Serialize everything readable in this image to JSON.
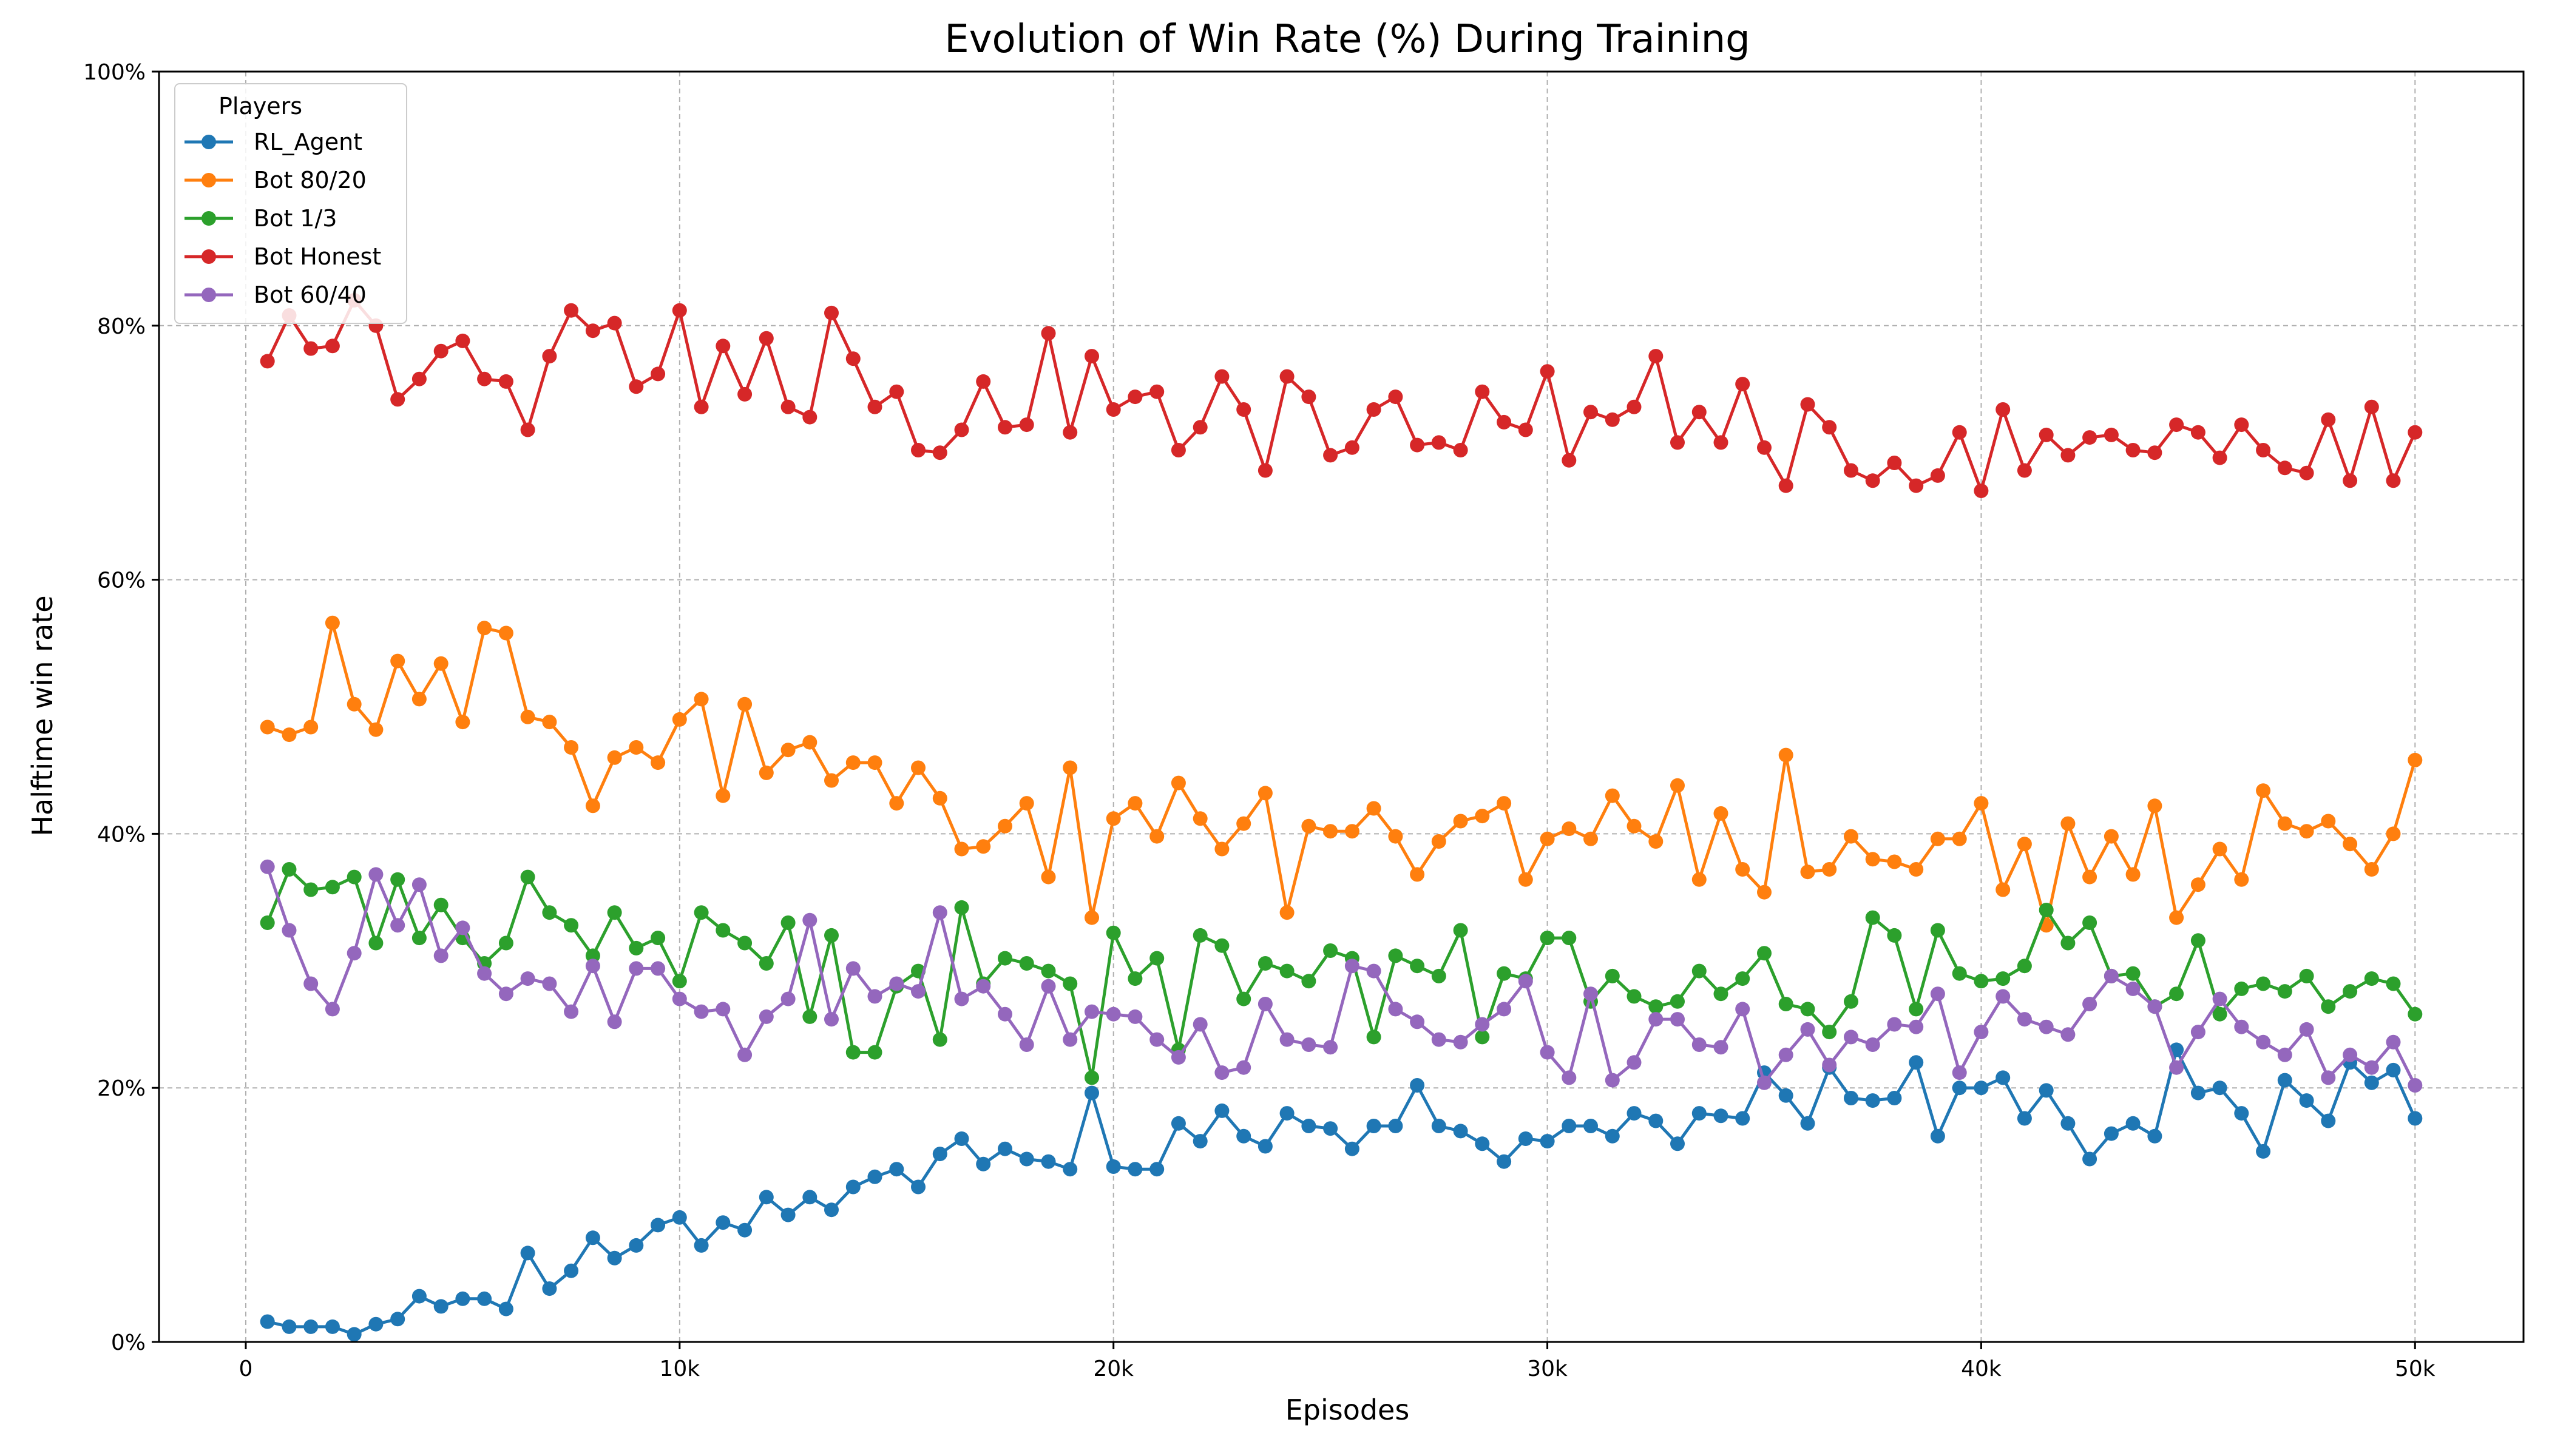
{
  "chart_data": {
    "type": "line",
    "title": "Evolution of Win Rate (%) During Training",
    "xlabel": "Episodes",
    "ylabel": "Halftime win rate",
    "xlim": [
      -2000,
      52500
    ],
    "ylim": [
      0,
      100
    ],
    "x_ticks": [
      {
        "value": 0,
        "label": "0"
      },
      {
        "value": 10000,
        "label": "10k"
      },
      {
        "value": 20000,
        "label": "20k"
      },
      {
        "value": 30000,
        "label": "30k"
      },
      {
        "value": 40000,
        "label": "40k"
      },
      {
        "value": 50000,
        "label": "50k"
      }
    ],
    "y_ticks": [
      {
        "value": 0,
        "label": "0%"
      },
      {
        "value": 20,
        "label": "20%"
      },
      {
        "value": 40,
        "label": "40%"
      },
      {
        "value": 60,
        "label": "60%"
      },
      {
        "value": 80,
        "label": "80%"
      },
      {
        "value": 100,
        "label": "100%"
      }
    ],
    "grid": true,
    "legend": {
      "title": "Players",
      "position": "top-left"
    },
    "x": {
      "start": 500,
      "step": 500,
      "count": 100
    },
    "series": [
      {
        "name": "RL_Agent",
        "color": "#1f77b4",
        "values": [
          1.6,
          1.2,
          1.2,
          1.2,
          0.6,
          1.4,
          1.8,
          3.6,
          2.8,
          3.4,
          3.4,
          2.6,
          7.0,
          4.2,
          5.6,
          8.2,
          6.6,
          7.6,
          9.2,
          9.8,
          7.6,
          9.4,
          8.8,
          11.4,
          10.0,
          11.4,
          10.4,
          12.2,
          13.0,
          13.6,
          12.2,
          14.8,
          16.0,
          14.0,
          15.2,
          14.4,
          14.2,
          13.6,
          19.6,
          13.8,
          13.6,
          13.6,
          17.2,
          15.8,
          18.2,
          16.2,
          15.4,
          18.0,
          17.0,
          16.8,
          15.2,
          17.0,
          17.0,
          20.2,
          17.0,
          16.6,
          15.6,
          14.2,
          16.0,
          15.8,
          17.0,
          17.0,
          16.2,
          18.0,
          17.4,
          15.6,
          18.0,
          17.8,
          17.6,
          21.2,
          19.4,
          17.2,
          21.6,
          19.2,
          19.0,
          19.2,
          22.0,
          16.2,
          20.0,
          20.0,
          20.8,
          17.6,
          19.8,
          17.2,
          14.4,
          16.4,
          17.2,
          16.2,
          23.0,
          19.6,
          20.0,
          18.0,
          15.0,
          20.6,
          19.0,
          17.4,
          22.0,
          20.4,
          21.4,
          17.6
        ]
      },
      {
        "name": "Bot 80/20",
        "color": "#ff7f0e",
        "values": [
          48.4,
          47.8,
          48.4,
          56.6,
          50.2,
          48.2,
          53.6,
          50.6,
          53.4,
          48.8,
          56.2,
          55.8,
          49.2,
          48.8,
          46.8,
          42.2,
          46.0,
          46.8,
          45.6,
          49.0,
          50.6,
          43.0,
          50.2,
          44.8,
          46.6,
          47.2,
          44.2,
          45.6,
          45.6,
          42.4,
          45.2,
          42.8,
          38.8,
          39.0,
          40.6,
          42.4,
          36.6,
          45.2,
          33.4,
          41.2,
          42.4,
          39.8,
          44.0,
          41.2,
          38.8,
          40.8,
          43.2,
          33.8,
          40.6,
          40.2,
          40.2,
          42.0,
          39.8,
          36.8,
          39.4,
          41.0,
          41.4,
          42.4,
          36.4,
          39.6,
          40.4,
          39.6,
          43.0,
          40.6,
          39.4,
          43.8,
          36.4,
          41.6,
          37.2,
          35.4,
          46.2,
          37.0,
          37.2,
          39.8,
          38.0,
          37.8,
          37.2,
          39.6,
          39.6,
          42.4,
          35.6,
          39.2,
          32.8,
          40.8,
          36.6,
          39.8,
          36.8,
          42.2,
          33.4,
          36.0,
          38.8,
          36.4,
          43.4,
          40.8,
          40.2,
          41.0,
          39.2,
          37.2,
          40.0,
          45.8
        ]
      },
      {
        "name": "Bot 1/3",
        "color": "#2ca02c",
        "values": [
          33.0,
          37.2,
          35.6,
          35.8,
          36.6,
          31.4,
          36.4,
          31.8,
          34.4,
          31.8,
          29.8,
          31.4,
          36.6,
          33.8,
          32.8,
          30.4,
          33.8,
          31.0,
          31.8,
          28.4,
          33.8,
          32.4,
          31.4,
          29.8,
          33.0,
          25.6,
          32.0,
          22.8,
          22.8,
          28.0,
          29.2,
          23.8,
          34.2,
          28.2,
          30.2,
          29.8,
          29.2,
          28.2,
          20.8,
          32.2,
          28.6,
          30.2,
          23.0,
          32.0,
          31.2,
          27.0,
          29.8,
          29.2,
          28.4,
          30.8,
          30.2,
          24.0,
          30.4,
          29.6,
          28.8,
          32.4,
          24.0,
          29.0,
          28.6,
          31.8,
          31.8,
          26.8,
          28.8,
          27.2,
          26.4,
          26.8,
          29.2,
          27.4,
          28.6,
          30.6,
          26.6,
          26.2,
          24.4,
          26.8,
          33.4,
          32.0,
          26.2,
          32.4,
          29.0,
          28.4,
          28.6,
          29.6,
          34.0,
          31.4,
          33.0,
          28.8,
          29.0,
          26.4,
          27.4,
          31.6,
          25.8,
          27.8,
          28.2,
          27.6,
          28.8,
          26.4,
          27.6,
          28.6,
          28.2,
          25.8
        ]
      },
      {
        "name": "Bot Honest",
        "color": "#d62728",
        "values": [
          77.2,
          80.8,
          78.2,
          78.4,
          82.0,
          80.0,
          74.2,
          75.8,
          78.0,
          78.8,
          75.8,
          75.6,
          71.8,
          77.6,
          81.2,
          79.6,
          80.2,
          75.2,
          76.2,
          81.2,
          73.6,
          78.4,
          74.6,
          79.0,
          73.6,
          72.8,
          81.0,
          77.4,
          73.6,
          74.8,
          70.2,
          70.0,
          71.8,
          75.6,
          72.0,
          72.2,
          79.4,
          71.6,
          77.6,
          73.4,
          74.4,
          74.8,
          70.2,
          72.0,
          76.0,
          73.4,
          68.6,
          76.0,
          74.4,
          69.8,
          70.4,
          73.4,
          74.4,
          70.6,
          70.8,
          70.2,
          74.8,
          72.4,
          71.8,
          76.4,
          69.4,
          73.2,
          72.6,
          73.6,
          77.6,
          70.8,
          73.2,
          70.8,
          75.4,
          70.4,
          67.4,
          73.8,
          72.0,
          68.6,
          67.8,
          69.2,
          67.4,
          68.2,
          71.6,
          67.0,
          73.4,
          68.6,
          71.4,
          69.8,
          71.2,
          71.4,
          70.2,
          70.0,
          72.2,
          71.6,
          69.6,
          72.2,
          70.2,
          68.8,
          68.4,
          72.6,
          67.8,
          73.6,
          67.8,
          71.6
        ]
      },
      {
        "name": "Bot 60/40",
        "color": "#9467bd",
        "values": [
          37.4,
          32.4,
          28.2,
          26.2,
          30.6,
          36.8,
          32.8,
          36.0,
          30.4,
          32.6,
          29.0,
          27.4,
          28.6,
          28.2,
          26.0,
          29.6,
          25.2,
          29.4,
          29.4,
          27.0,
          26.0,
          26.2,
          22.6,
          25.6,
          27.0,
          33.2,
          25.4,
          29.4,
          27.2,
          28.2,
          27.6,
          33.8,
          27.0,
          28.0,
          25.8,
          23.4,
          28.0,
          23.8,
          26.0,
          25.8,
          25.6,
          23.8,
          22.4,
          25.0,
          21.2,
          21.6,
          26.6,
          23.8,
          23.4,
          23.2,
          29.6,
          29.2,
          26.2,
          25.2,
          23.8,
          23.6,
          25.0,
          26.2,
          28.4,
          22.8,
          20.8,
          27.4,
          20.6,
          22.0,
          25.4,
          25.4,
          23.4,
          23.2,
          26.2,
          20.4,
          22.6,
          24.6,
          21.8,
          24.0,
          23.4,
          25.0,
          24.8,
          27.4,
          21.2,
          24.4,
          27.2,
          25.4,
          24.8,
          24.2,
          26.6,
          28.8,
          27.8,
          26.4,
          21.6,
          24.4,
          27.0,
          24.8,
          23.6,
          22.6,
          24.6,
          20.8,
          22.6,
          21.6,
          23.6,
          20.2
        ]
      }
    ]
  }
}
